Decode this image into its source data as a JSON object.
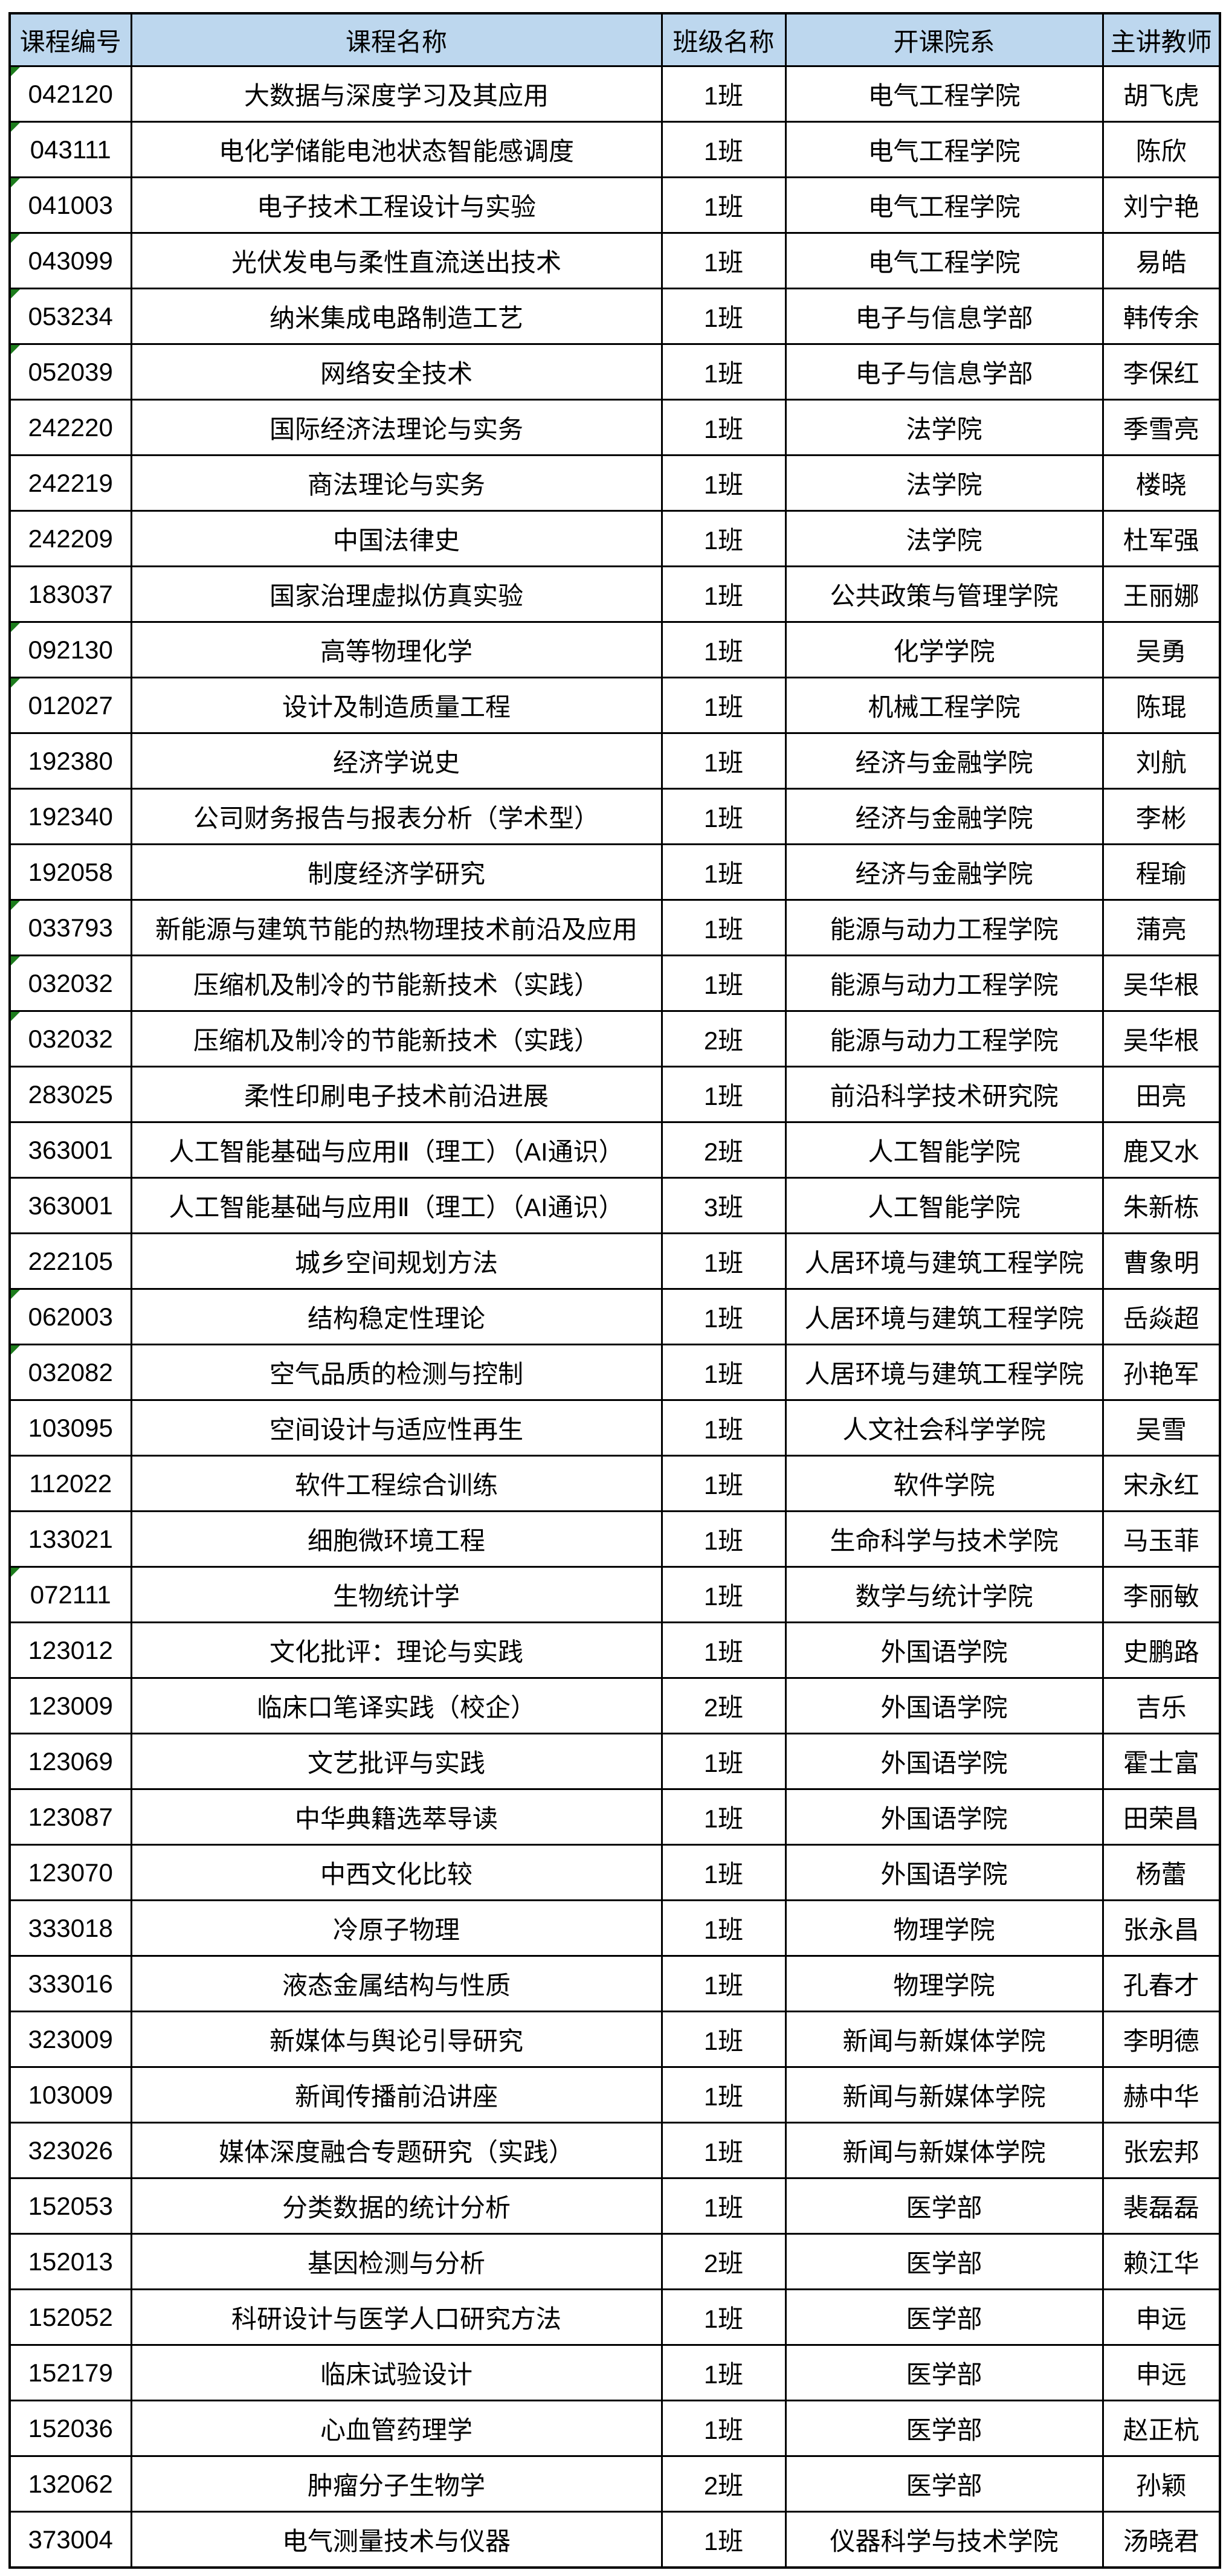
{
  "colors": {
    "header_bg": "#BDD7EE",
    "border": "#000000",
    "flag_green": "#1d7d1d",
    "cell_bg": "#FFFFFF"
  },
  "table": {
    "headers": [
      "课程编号",
      "课程名称",
      "班级名称",
      "开课院系",
      "主讲教师"
    ],
    "rows": [
      {
        "id": "042120",
        "name": "大数据与深度学习及其应用",
        "cls": "1班",
        "dept": "电气工程学院",
        "teacher": "胡飞虎",
        "flag": true
      },
      {
        "id": "043111",
        "name": "电化学储能电池状态智能感调度",
        "cls": "1班",
        "dept": "电气工程学院",
        "teacher": "陈欣",
        "flag": true
      },
      {
        "id": "041003",
        "name": "电子技术工程设计与实验",
        "cls": "1班",
        "dept": "电气工程学院",
        "teacher": "刘宁艳",
        "flag": true
      },
      {
        "id": "043099",
        "name": "光伏发电与柔性直流送出技术",
        "cls": "1班",
        "dept": "电气工程学院",
        "teacher": "易皓",
        "flag": true
      },
      {
        "id": "053234",
        "name": "纳米集成电路制造工艺",
        "cls": "1班",
        "dept": "电子与信息学部",
        "teacher": "韩传余",
        "flag": true
      },
      {
        "id": "052039",
        "name": "网络安全技术",
        "cls": "1班",
        "dept": "电子与信息学部",
        "teacher": "李保红",
        "flag": true
      },
      {
        "id": "242220",
        "name": "国际经济法理论与实务",
        "cls": "1班",
        "dept": "法学院",
        "teacher": "季雪亮",
        "flag": false
      },
      {
        "id": "242219",
        "name": "商法理论与实务",
        "cls": "1班",
        "dept": "法学院",
        "teacher": "楼晓",
        "flag": false
      },
      {
        "id": "242209",
        "name": "中国法律史",
        "cls": "1班",
        "dept": "法学院",
        "teacher": "杜军强",
        "flag": false
      },
      {
        "id": "183037",
        "name": "国家治理虚拟仿真实验",
        "cls": "1班",
        "dept": "公共政策与管理学院",
        "teacher": "王丽娜",
        "flag": false
      },
      {
        "id": "092130",
        "name": "高等物理化学",
        "cls": "1班",
        "dept": "化学学院",
        "teacher": "吴勇",
        "flag": true
      },
      {
        "id": "012027",
        "name": "设计及制造质量工程",
        "cls": "1班",
        "dept": "机械工程学院",
        "teacher": "陈琨",
        "flag": true
      },
      {
        "id": "192380",
        "name": "经济学说史",
        "cls": "1班",
        "dept": "经济与金融学院",
        "teacher": "刘航",
        "flag": false
      },
      {
        "id": "192340",
        "name": "公司财务报告与报表分析（学术型）",
        "cls": "1班",
        "dept": "经济与金融学院",
        "teacher": "李彬",
        "flag": false
      },
      {
        "id": "192058",
        "name": "制度经济学研究",
        "cls": "1班",
        "dept": "经济与金融学院",
        "teacher": "程瑜",
        "flag": false
      },
      {
        "id": "033793",
        "name": "新能源与建筑节能的热物理技术前沿及应用",
        "cls": "1班",
        "dept": "能源与动力工程学院",
        "teacher": "蒲亮",
        "flag": true
      },
      {
        "id": "032032",
        "name": "压缩机及制冷的节能新技术（实践）",
        "cls": "1班",
        "dept": "能源与动力工程学院",
        "teacher": "吴华根",
        "flag": true
      },
      {
        "id": "032032",
        "name": "压缩机及制冷的节能新技术（实践）",
        "cls": "2班",
        "dept": "能源与动力工程学院",
        "teacher": "吴华根",
        "flag": true
      },
      {
        "id": "283025",
        "name": "柔性印刷电子技术前沿进展",
        "cls": "1班",
        "dept": "前沿科学技术研究院",
        "teacher": "田亮",
        "flag": false
      },
      {
        "id": "363001",
        "name": "人工智能基础与应用Ⅱ（理工）（AI通识）",
        "cls": "2班",
        "dept": "人工智能学院",
        "teacher": "鹿又水",
        "flag": false
      },
      {
        "id": "363001",
        "name": "人工智能基础与应用Ⅱ（理工）（AI通识）",
        "cls": "3班",
        "dept": "人工智能学院",
        "teacher": "朱新栋",
        "flag": false
      },
      {
        "id": "222105",
        "name": "城乡空间规划方法",
        "cls": "1班",
        "dept": "人居环境与建筑工程学院",
        "teacher": "曹象明",
        "flag": false
      },
      {
        "id": "062003",
        "name": "结构稳定性理论",
        "cls": "1班",
        "dept": "人居环境与建筑工程学院",
        "teacher": "岳焱超",
        "flag": true
      },
      {
        "id": "032082",
        "name": "空气品质的检测与控制",
        "cls": "1班",
        "dept": "人居环境与建筑工程学院",
        "teacher": "孙艳军",
        "flag": true
      },
      {
        "id": "103095",
        "name": "空间设计与适应性再生",
        "cls": "1班",
        "dept": "人文社会科学学院",
        "teacher": "吴雪",
        "flag": false
      },
      {
        "id": "112022",
        "name": "软件工程综合训练",
        "cls": "1班",
        "dept": "软件学院",
        "teacher": "宋永红",
        "flag": false
      },
      {
        "id": "133021",
        "name": "细胞微环境工程",
        "cls": "1班",
        "dept": "生命科学与技术学院",
        "teacher": "马玉菲",
        "flag": false
      },
      {
        "id": "072111",
        "name": "生物统计学",
        "cls": "1班",
        "dept": "数学与统计学院",
        "teacher": "李丽敏",
        "flag": true
      },
      {
        "id": "123012",
        "name": "文化批评：理论与实践",
        "cls": "1班",
        "dept": "外国语学院",
        "teacher": "史鹏路",
        "flag": false
      },
      {
        "id": "123009",
        "name": "临床口笔译实践（校企）",
        "cls": "2班",
        "dept": "外国语学院",
        "teacher": "吉乐",
        "flag": false
      },
      {
        "id": "123069",
        "name": "文艺批评与实践",
        "cls": "1班",
        "dept": "外国语学院",
        "teacher": "霍士富",
        "flag": false
      },
      {
        "id": "123087",
        "name": "中华典籍选萃导读",
        "cls": "1班",
        "dept": "外国语学院",
        "teacher": "田荣昌",
        "flag": false
      },
      {
        "id": "123070",
        "name": "中西文化比较",
        "cls": "1班",
        "dept": "外国语学院",
        "teacher": "杨蕾",
        "flag": false
      },
      {
        "id": "333018",
        "name": "冷原子物理",
        "cls": "1班",
        "dept": "物理学院",
        "teacher": "张永昌",
        "flag": false
      },
      {
        "id": "333016",
        "name": "液态金属结构与性质",
        "cls": "1班",
        "dept": "物理学院",
        "teacher": "孔春才",
        "flag": false
      },
      {
        "id": "323009",
        "name": "新媒体与舆论引导研究",
        "cls": "1班",
        "dept": "新闻与新媒体学院",
        "teacher": "李明德",
        "flag": false
      },
      {
        "id": "103009",
        "name": "新闻传播前沿讲座",
        "cls": "1班",
        "dept": "新闻与新媒体学院",
        "teacher": "赫中华",
        "flag": false
      },
      {
        "id": "323026",
        "name": "媒体深度融合专题研究（实践）",
        "cls": "1班",
        "dept": "新闻与新媒体学院",
        "teacher": "张宏邦",
        "flag": false
      },
      {
        "id": "152053",
        "name": "分类数据的统计分析",
        "cls": "1班",
        "dept": "医学部",
        "teacher": "裴磊磊",
        "flag": false
      },
      {
        "id": "152013",
        "name": "基因检测与分析",
        "cls": "2班",
        "dept": "医学部",
        "teacher": "赖江华",
        "flag": false
      },
      {
        "id": "152052",
        "name": "科研设计与医学人口研究方法",
        "cls": "1班",
        "dept": "医学部",
        "teacher": "申远",
        "flag": false
      },
      {
        "id": "152179",
        "name": "临床试验设计",
        "cls": "1班",
        "dept": "医学部",
        "teacher": "申远",
        "flag": false
      },
      {
        "id": "152036",
        "name": "心血管药理学",
        "cls": "1班",
        "dept": "医学部",
        "teacher": "赵正杭",
        "flag": false
      },
      {
        "id": "132062",
        "name": "肿瘤分子生物学",
        "cls": "2班",
        "dept": "医学部",
        "teacher": "孙颖",
        "flag": false
      },
      {
        "id": "373004",
        "name": "电气测量技术与仪器",
        "cls": "1班",
        "dept": "仪器科学与技术学院",
        "teacher": "汤晓君",
        "flag": false
      }
    ]
  }
}
